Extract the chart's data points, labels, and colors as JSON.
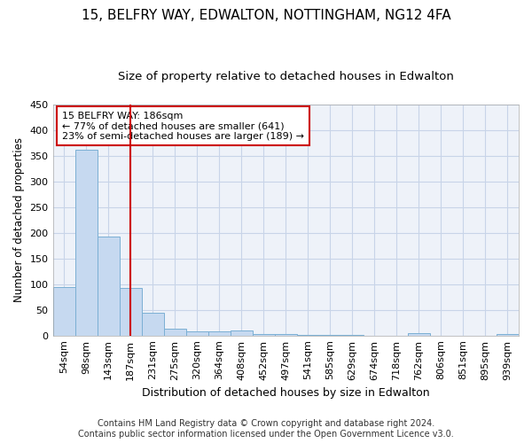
{
  "title1": "15, BELFRY WAY, EDWALTON, NOTTINGHAM, NG12 4FA",
  "title2": "Size of property relative to detached houses in Edwalton",
  "xlabel": "Distribution of detached houses by size in Edwalton",
  "ylabel": "Number of detached properties",
  "bin_labels": [
    "54sqm",
    "98sqm",
    "143sqm",
    "187sqm",
    "231sqm",
    "275sqm",
    "320sqm",
    "364sqm",
    "408sqm",
    "452sqm",
    "497sqm",
    "541sqm",
    "585sqm",
    "629sqm",
    "674sqm",
    "718sqm",
    "762sqm",
    "806sqm",
    "851sqm",
    "895sqm",
    "939sqm"
  ],
  "bar_values": [
    95,
    362,
    193,
    93,
    45,
    13,
    8,
    8,
    10,
    3,
    3,
    1,
    1,
    1,
    0,
    0,
    5,
    0,
    0,
    0,
    3
  ],
  "bar_color": "#c6d9f0",
  "bar_edge_color": "#7bafd4",
  "vline_x": 3,
  "vline_color": "#cc0000",
  "annotation_text": "15 BELFRY WAY: 186sqm\n← 77% of detached houses are smaller (641)\n23% of semi-detached houses are larger (189) →",
  "annotation_box_color": "#ffffff",
  "annotation_box_edge": "#cc0000",
  "ylim": [
    0,
    450
  ],
  "yticks": [
    0,
    50,
    100,
    150,
    200,
    250,
    300,
    350,
    400,
    450
  ],
  "grid_color": "#c8d4e8",
  "bg_color": "#eef2f9",
  "footer1": "Contains HM Land Registry data © Crown copyright and database right 2024.",
  "footer2": "Contains public sector information licensed under the Open Government Licence v3.0.",
  "title1_fontsize": 11,
  "title2_fontsize": 9.5,
  "xlabel_fontsize": 9,
  "ylabel_fontsize": 8.5,
  "tick_fontsize": 8,
  "annotation_fontsize": 8,
  "footer_fontsize": 7
}
